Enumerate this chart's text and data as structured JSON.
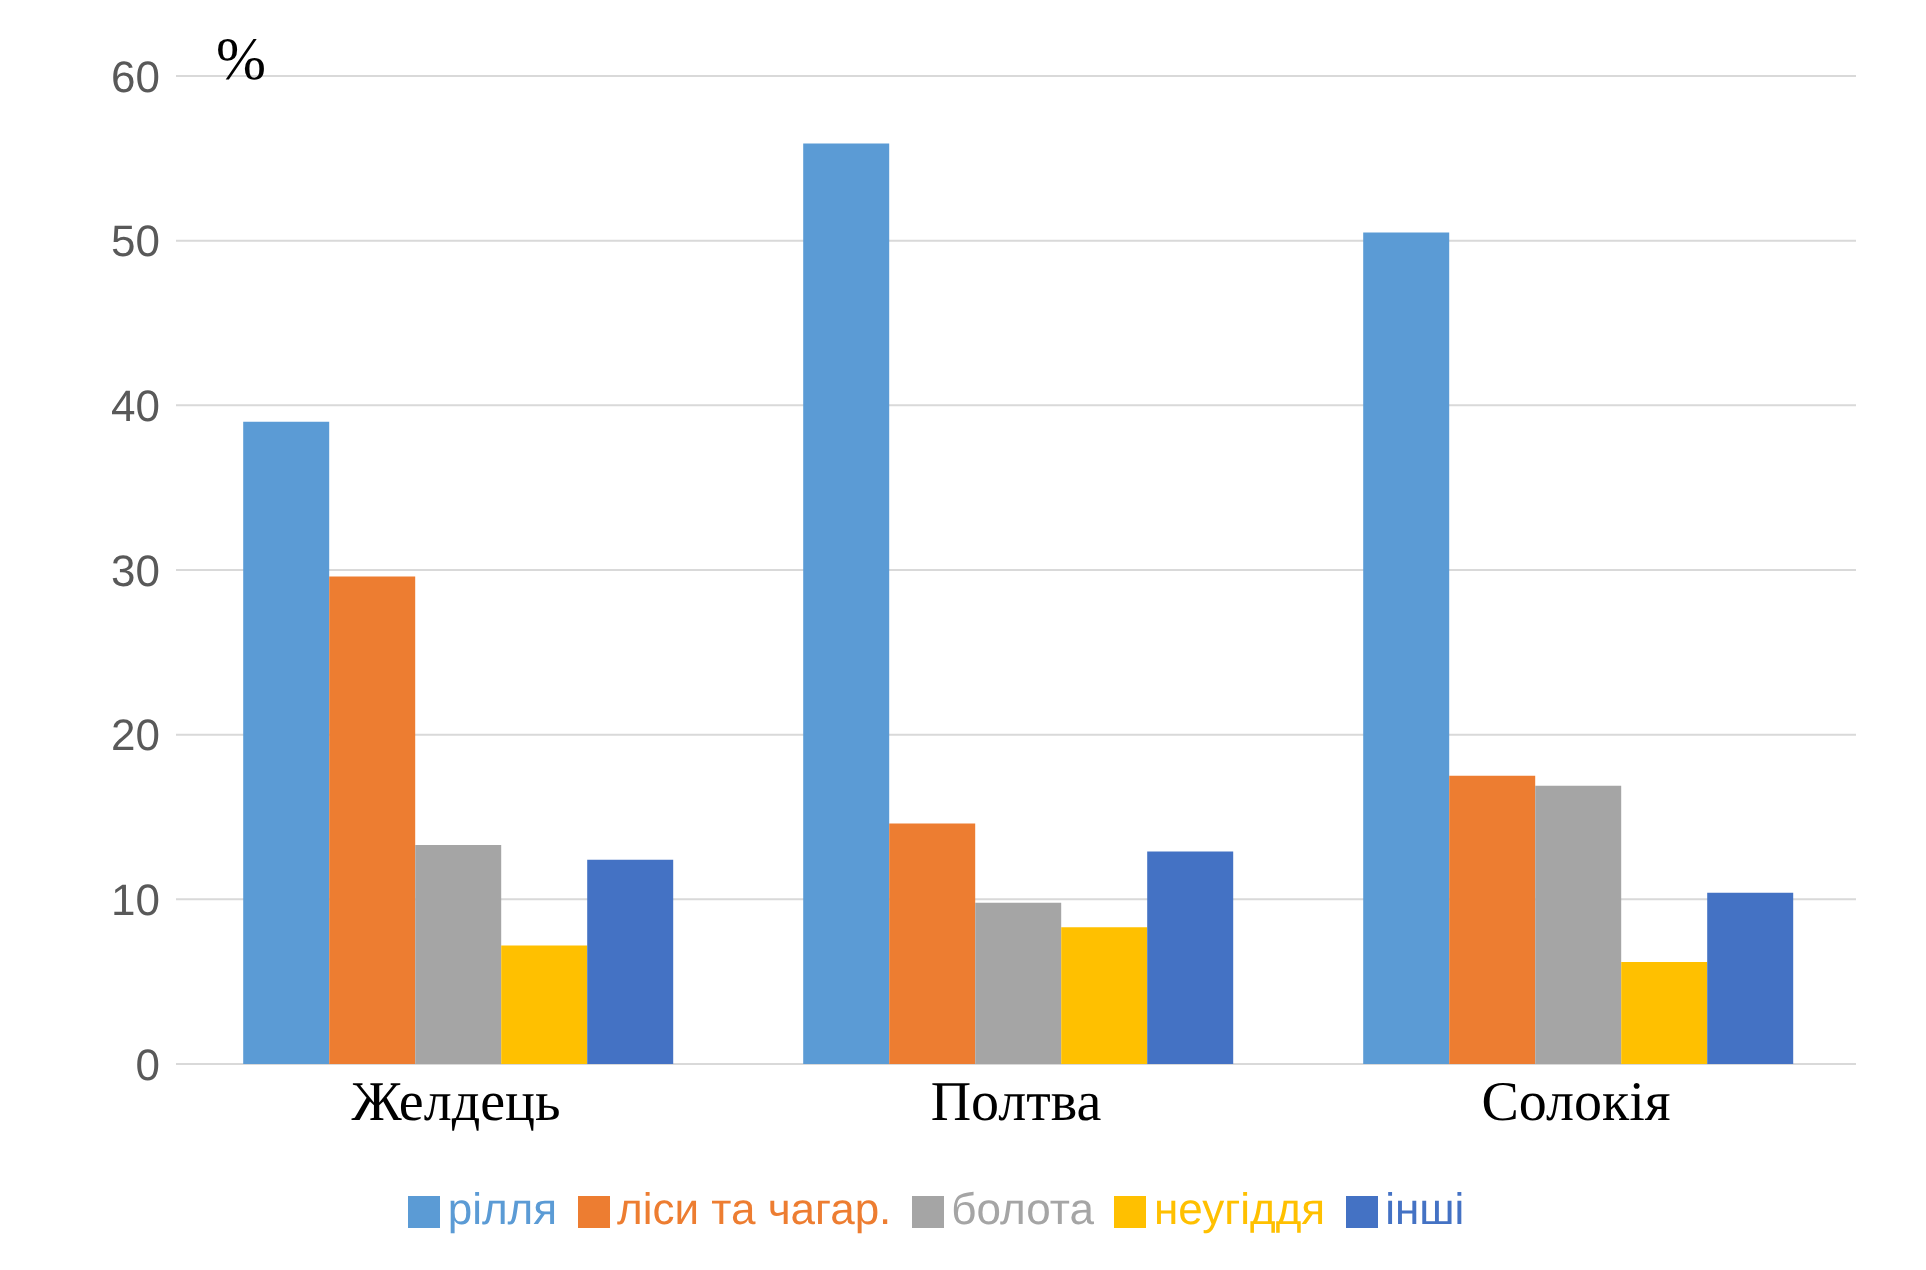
{
  "chart_data": {
    "type": "bar",
    "ylabel": "%",
    "categories": [
      "Желдець",
      "Полтва",
      "Солокія"
    ],
    "series": [
      {
        "name": "рілля",
        "color": "#5b9bd5",
        "values": [
          39,
          55.9,
          50.5
        ]
      },
      {
        "name": "ліси та чагар.",
        "color": "#ed7d31",
        "values": [
          29.6,
          14.6,
          17.5
        ]
      },
      {
        "name": "болота",
        "color": "#a5a5a5",
        "values": [
          13.3,
          9.8,
          16.9
        ]
      },
      {
        "name": "неугіддя",
        "color": "#ffc000",
        "values": [
          7.2,
          8.3,
          6.2
        ]
      },
      {
        "name": "інші",
        "color": "#4472c4",
        "values": [
          12.4,
          12.9,
          10.4
        ]
      }
    ],
    "ylim": [
      0,
      60
    ],
    "yticks": [
      0,
      10,
      20,
      30,
      40,
      50,
      60
    ],
    "grid": "y",
    "legend": "bottom"
  }
}
